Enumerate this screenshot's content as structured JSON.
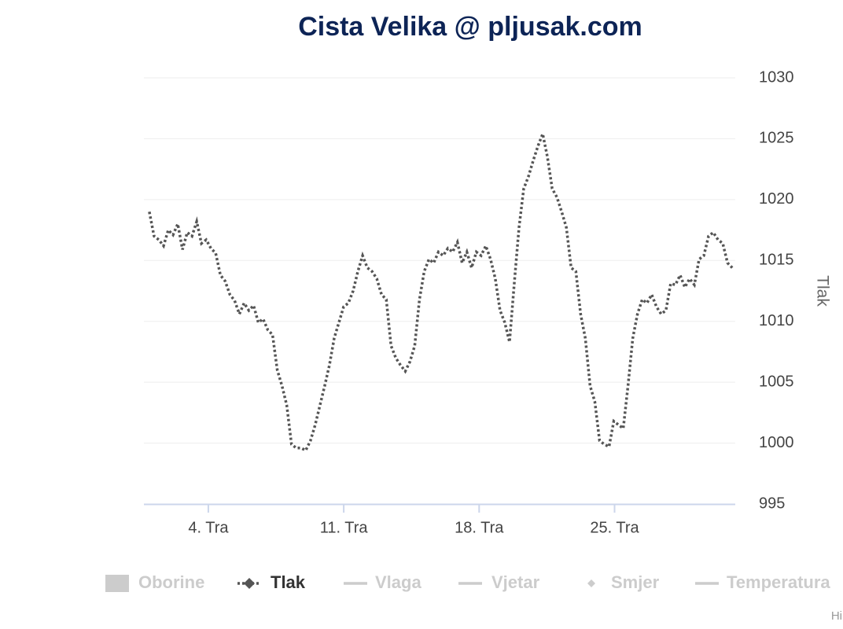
{
  "chart_data": {
    "type": "line",
    "title": "Cista Velika @ pljusak.com",
    "y_axis_title": "Tlak",
    "x": [
      0.95,
      1.195,
      1.44,
      1.685,
      1.93,
      2.175,
      2.42,
      2.665,
      2.91,
      3.155,
      3.4,
      3.645,
      3.89,
      4.135,
      4.38,
      4.625,
      4.87,
      5.115,
      5.36,
      5.605,
      5.85,
      6.095,
      6.34,
      6.585,
      6.83,
      7.075,
      7.32,
      7.565,
      7.81,
      8.055,
      8.3,
      8.545,
      8.79,
      9.035,
      9.28,
      9.525,
      9.77,
      10.015,
      10.26,
      10.505,
      10.75,
      10.995,
      11.24,
      11.485,
      11.73,
      11.975,
      12.22,
      12.465,
      12.71,
      12.955,
      13.2,
      13.445,
      13.69,
      13.935,
      14.18,
      14.425,
      14.67,
      14.915,
      15.16,
      15.405,
      15.65,
      15.895,
      16.14,
      16.385,
      16.63,
      16.875,
      17.12,
      17.365,
      17.61,
      17.855,
      18.1,
      18.345,
      18.59,
      18.835,
      19.08,
      19.325,
      19.57,
      19.815,
      20.06,
      20.305,
      20.55,
      20.795,
      21.04,
      21.285,
      21.53,
      21.775,
      22.02,
      22.265,
      22.51,
      22.755,
      23,
      23.245,
      23.49,
      23.735,
      23.98,
      24.225,
      24.47,
      24.715,
      24.96,
      25.205,
      25.45,
      25.695,
      25.94,
      26.185,
      26.43,
      26.675,
      26.92,
      27.165,
      27.41,
      27.655,
      27.9,
      28.145,
      28.39,
      28.635,
      28.88,
      29.125,
      29.37,
      29.615,
      29.86,
      30.105,
      30.35,
      30.595,
      30.84,
      31.085
    ],
    "series": [
      {
        "name": "Tlak",
        "color": "#555555",
        "dash": "dotted",
        "values": [
          1019.0,
          1017.0,
          1016.7,
          1016.2,
          1017.5,
          1017.1,
          1018.0,
          1015.9,
          1017.3,
          1017.0,
          1018.2,
          1016.4,
          1016.7,
          1016.0,
          1015.6,
          1013.8,
          1013.3,
          1012.2,
          1011.7,
          1010.6,
          1011.5,
          1010.9,
          1011.3,
          1009.9,
          1010.2,
          1009.3,
          1008.9,
          1006.0,
          1004.7,
          1003.1,
          999.9,
          999.6,
          999.6,
          999.4,
          1000.2,
          1001.5,
          1003.1,
          1004.7,
          1006.4,
          1008.6,
          1009.9,
          1011.2,
          1011.5,
          1012.5,
          1014.1,
          1015.4,
          1014.4,
          1014.1,
          1013.5,
          1012.2,
          1011.8,
          1008.0,
          1007.0,
          1006.4,
          1005.9,
          1006.7,
          1008.0,
          1011.8,
          1014.1,
          1015.1,
          1014.8,
          1015.7,
          1015.4,
          1016.0,
          1015.7,
          1016.5,
          1014.8,
          1015.7,
          1014.4,
          1015.7,
          1015.4,
          1016.2,
          1015.1,
          1013.5,
          1010.9,
          1009.9,
          1008.3,
          1013.1,
          1017.7,
          1020.9,
          1021.9,
          1023.2,
          1024.4,
          1025.4,
          1023.5,
          1020.9,
          1020.2,
          1019.0,
          1017.7,
          1014.4,
          1014.1,
          1010.6,
          1008.6,
          1004.7,
          1003.4,
          1000.2,
          999.9,
          999.7,
          1001.8,
          1001.5,
          1001.2,
          1004.7,
          1008.6,
          1010.6,
          1011.8,
          1011.5,
          1012.2,
          1011.2,
          1010.6,
          1010.9,
          1013.1,
          1013.0,
          1013.8,
          1012.8,
          1013.5,
          1013.0,
          1015.1,
          1015.4,
          1017.0,
          1017.3,
          1016.7,
          1016.4,
          1014.8,
          1014.4
        ]
      }
    ],
    "hidden_series": [
      {
        "name": "Oborine",
        "symbol": "box"
      },
      {
        "name": "Vlaga",
        "symbol": "line"
      },
      {
        "name": "Vjetar",
        "symbol": "line"
      },
      {
        "name": "Smjer",
        "symbol": "diamond"
      },
      {
        "name": "Temperatura",
        "symbol": "line"
      }
    ],
    "hidden_color": "#cccccc",
    "xlim": [
      0.67,
      31.24
    ],
    "xticks": [
      {
        "value": 4,
        "label": "4. Tra"
      },
      {
        "value": 11,
        "label": "11. Tra"
      },
      {
        "value": 18,
        "label": "18. Tra"
      },
      {
        "value": 25,
        "label": "25. Tra"
      }
    ],
    "ylim": [
      995,
      1030
    ],
    "yticks": [
      995,
      1000,
      1005,
      1010,
      1015,
      1020,
      1025,
      1030
    ],
    "grid": true,
    "credit": "Hi"
  }
}
